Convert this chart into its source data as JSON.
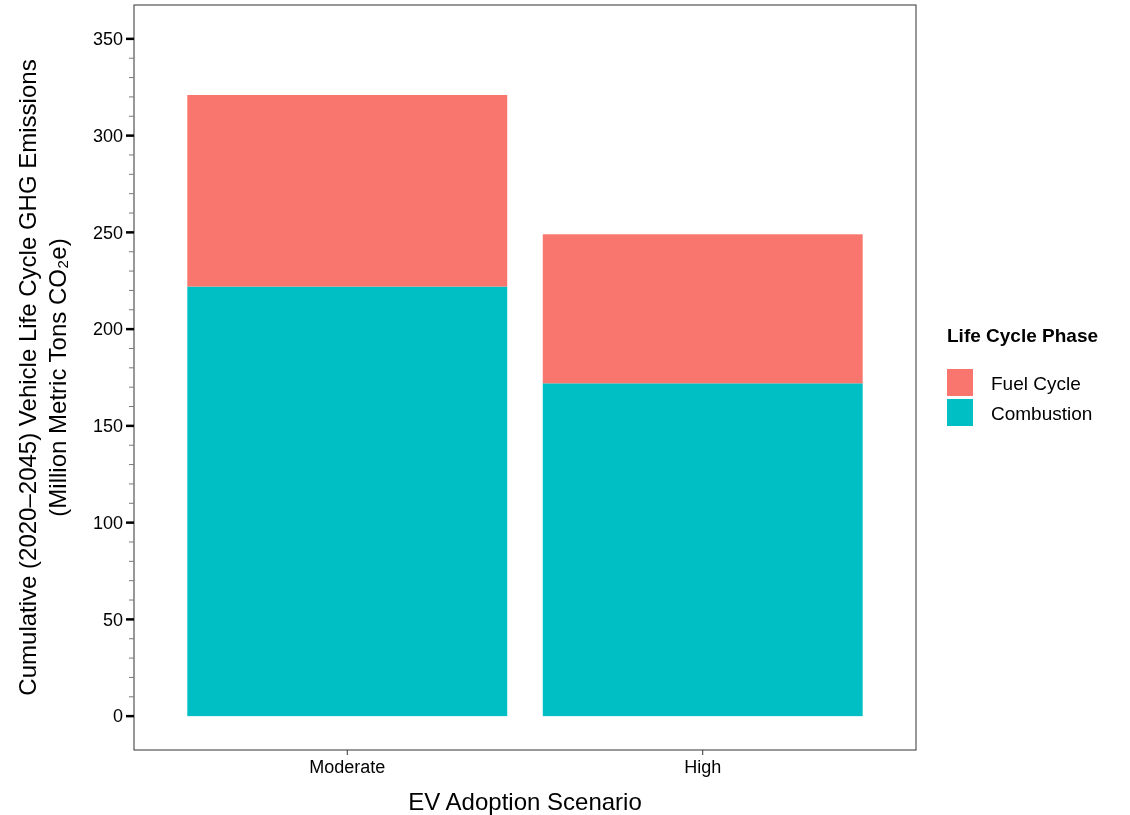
{
  "chart_data": {
    "type": "bar",
    "stacked": true,
    "xlabel": "EV Adoption Scenario",
    "ylabel": "Cumulative (2020–2045) Vehicle Life Cycle GHG Emissions\n(Million Metric Tons CO₂e)",
    "legend_title": "Life Cycle Phase",
    "legend": "right",
    "categories": [
      "Moderate",
      "High"
    ],
    "series": [
      {
        "name": "Combustion",
        "color": "#00bfc4",
        "values": [
          222,
          172
        ]
      },
      {
        "name": "Fuel Cycle",
        "color": "#f8766d",
        "values": [
          99,
          77
        ]
      }
    ],
    "ylim": [
      -17.5,
      367.5
    ],
    "yticks": [
      0,
      {
        "value": 10,
        "label": null
      },
      {
        "value": 20,
        "label": null
      },
      {
        "value": 30,
        "label": null
      },
      {
        "value": 40,
        "label": null
      },
      50,
      {
        "value": 60,
        "label": null
      },
      {
        "value": 70,
        "label": null
      },
      {
        "value": 80,
        "label": null
      },
      {
        "value": 90,
        "label": null
      },
      100,
      {
        "value": 110,
        "label": null
      },
      {
        "value": 120,
        "label": null
      },
      {
        "value": 130,
        "label": null
      },
      {
        "value": 140,
        "label": null
      },
      150,
      {
        "value": 160,
        "label": null
      },
      {
        "value": 170,
        "label": null
      },
      {
        "value": 180,
        "label": null
      },
      {
        "value": 190,
        "label": null
      },
      200,
      {
        "value": 210,
        "label": null
      },
      {
        "value": 220,
        "label": null
      },
      {
        "value": 230,
        "label": null
      },
      {
        "value": 240,
        "label": null
      },
      250,
      {
        "value": 260,
        "label": null
      },
      {
        "value": 270,
        "label": null
      },
      {
        "value": 280,
        "label": null
      },
      {
        "value": 290,
        "label": null
      },
      300,
      {
        "value": 310,
        "label": null
      },
      {
        "value": 320,
        "label": null
      },
      {
        "value": 330,
        "label": null
      },
      {
        "value": 340,
        "label": null
      },
      350
    ],
    "grid": false
  }
}
